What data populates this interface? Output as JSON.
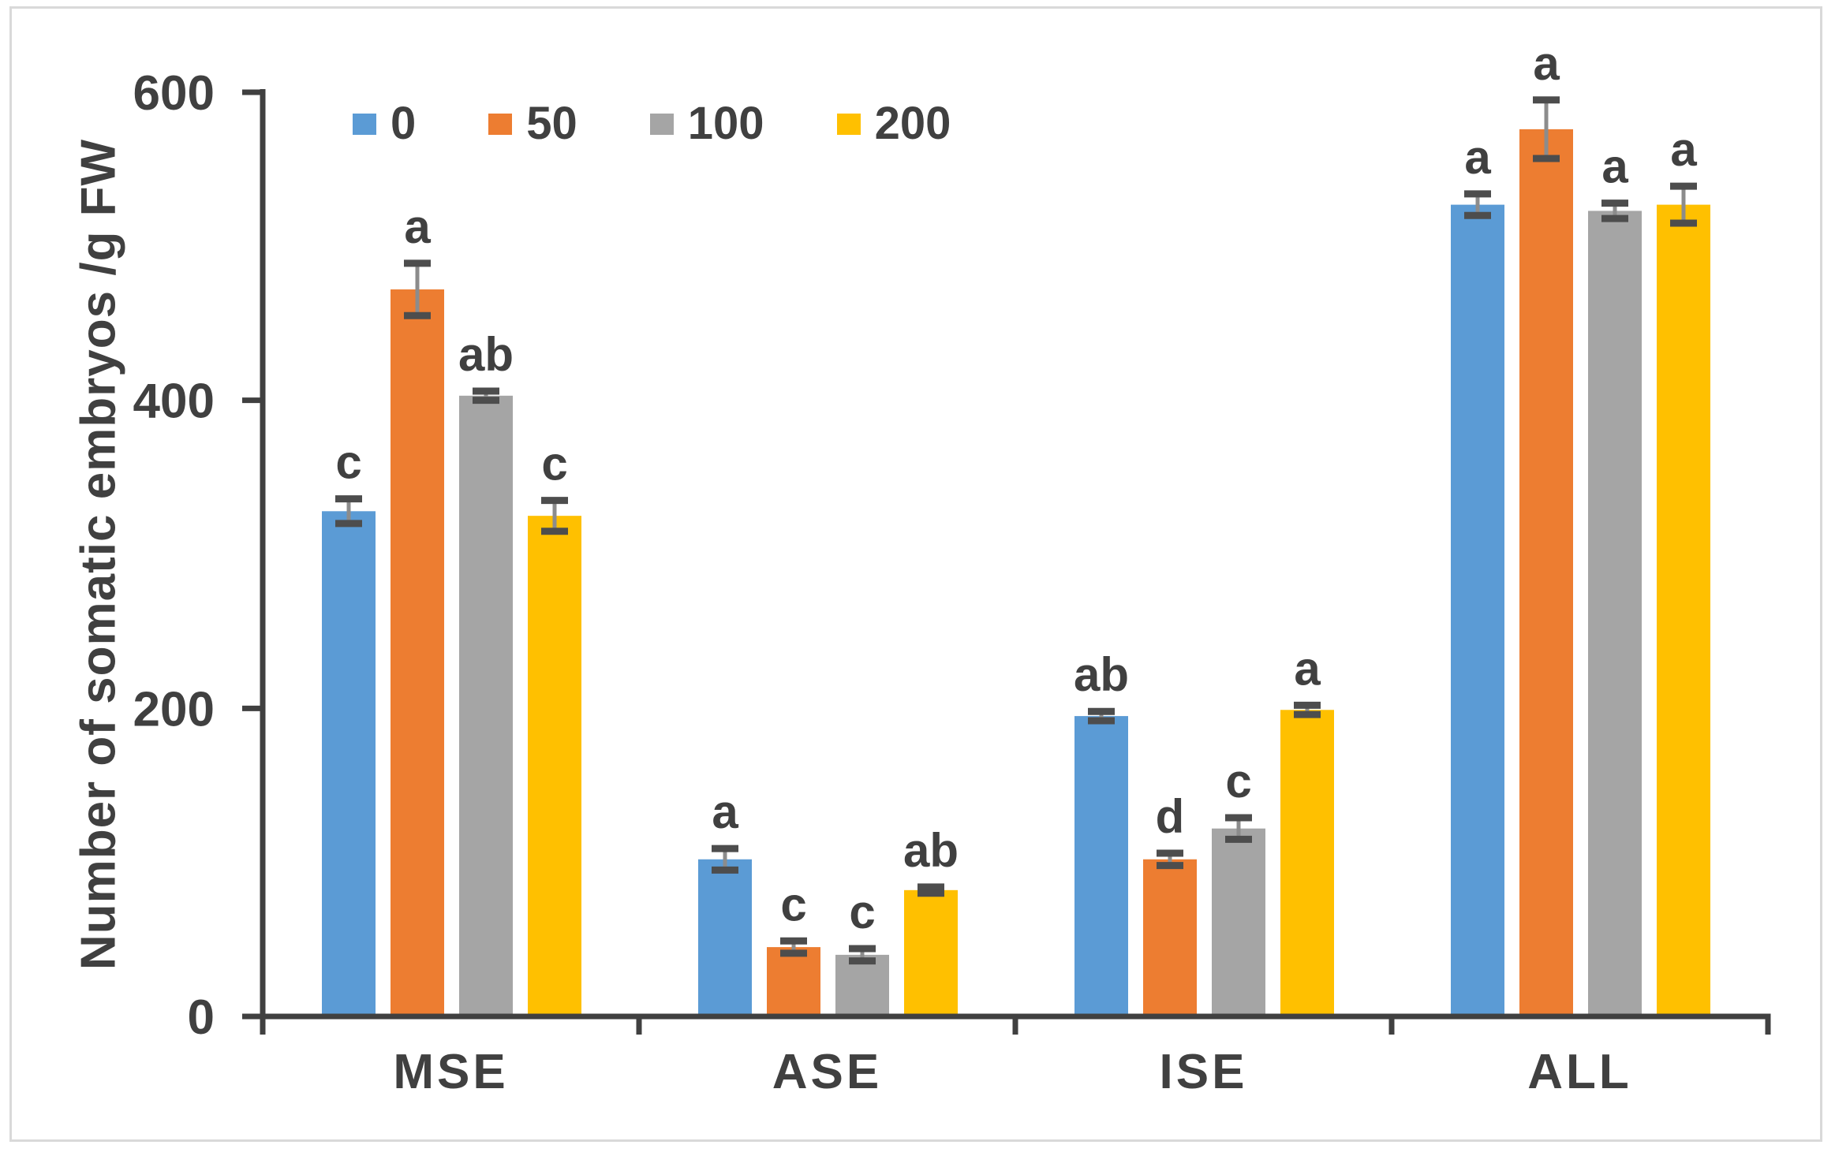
{
  "figure": {
    "background": "#ffffff",
    "border_color": "#d9d9d9",
    "axis_color": "#404040",
    "text_color": "#404040",
    "error_bar_line_color": "#8c8c8c",
    "error_bar_cap_color": "#4d4d4d"
  },
  "chart_data": {
    "type": "bar",
    "title": "",
    "xlabel": "",
    "ylabel": "Number of somatic embryos /g FW",
    "ylim": [
      0,
      600
    ],
    "yticks": [
      0,
      200,
      400,
      600
    ],
    "grid": false,
    "legend_position": "top-left-inside",
    "legend_entries": [
      "0",
      "50",
      "100",
      "200"
    ],
    "categories": [
      "MSE",
      "ASE",
      "ISE",
      "ALL"
    ],
    "series": [
      {
        "name": "0",
        "color": "#5B9BD5",
        "values": [
          328,
          102,
          195,
          527
        ],
        "errors": [
          8,
          7,
          3,
          7
        ],
        "sig_letters": [
          "c",
          "a",
          "ab",
          "a"
        ]
      },
      {
        "name": "50",
        "color": "#ED7D31",
        "values": [
          472,
          45,
          102,
          576
        ],
        "errors": [
          17,
          4,
          4,
          19
        ],
        "sig_letters": [
          "a",
          "c",
          "d",
          "a"
        ]
      },
      {
        "name": "100",
        "color": "#A5A5A5",
        "values": [
          403,
          40,
          122,
          523
        ],
        "errors": [
          3,
          4,
          7,
          5
        ],
        "sig_letters": [
          "ab",
          "c",
          "c",
          "a"
        ]
      },
      {
        "name": "200",
        "color": "#FFC000",
        "values": [
          325,
          82,
          199,
          527
        ],
        "errors": [
          10,
          2,
          3,
          12
        ],
        "sig_letters": [
          "c",
          "ab",
          "a",
          "a"
        ]
      }
    ]
  }
}
